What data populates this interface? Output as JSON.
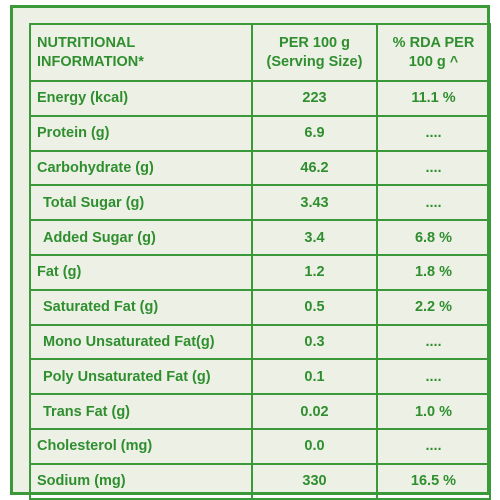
{
  "table": {
    "headers": {
      "nutrient": "NUTRITIONAL INFORMATION*",
      "per100g": "PER 100 g (Serving Size)",
      "rda": "% RDA PER 100 g ^"
    },
    "rows": [
      {
        "label": "Energy (kcal)",
        "value": "223",
        "rda": "11.1 %"
      },
      {
        "label": "Protein (g)",
        "value": "6.9",
        "rda": "...."
      },
      {
        "label": "Carbohydrate (g)",
        "value": "46.2",
        "rda": "...."
      },
      {
        "label": "Total Sugar (g)",
        "value": "3.43",
        "rda": "...."
      },
      {
        "label": "Added Sugar (g)",
        "value": "3.4",
        "rda": "6.8 %"
      },
      {
        "label": "Fat (g)",
        "value": "1.2",
        "rda": "1.8 %"
      },
      {
        "label": "Saturated Fat (g)",
        "value": "0.5",
        "rda": "2.2 %"
      },
      {
        "label": "Mono Unsaturated Fat(g)",
        "value": "0.3",
        "rda": "...."
      },
      {
        "label": "Poly Unsaturated Fat (g)",
        "value": "0.1",
        "rda": "...."
      },
      {
        "label": "Trans Fat (g)",
        "value": "0.02",
        "rda": "1.0 %"
      },
      {
        "label": "Cholesterol (mg)",
        "value": "0.0",
        "rda": "...."
      },
      {
        "label": "Sodium (mg)",
        "value": "330",
        "rda": "16.5 %"
      }
    ]
  },
  "colors": {
    "text": "#2f8f2f",
    "border": "#3a9a3a",
    "background": "#edf0e5"
  }
}
